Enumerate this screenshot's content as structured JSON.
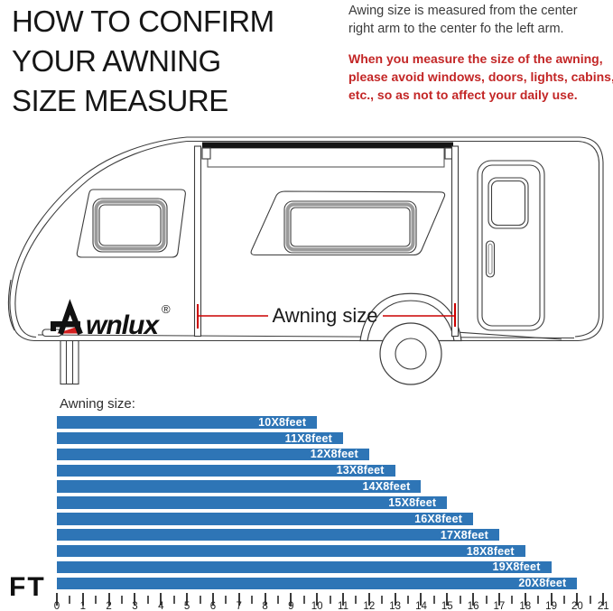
{
  "header": {
    "title_lines": [
      "HOW TO CONFIRM",
      "YOUR AWNING",
      "SIZE MEASURE"
    ],
    "note_black_lines": [
      "Awing size is measured from the center",
      "right arm to the center fo the left arm."
    ],
    "note_red_lines": [
      "When you measure the size of the awning,",
      "please avoid windows, doors, lights, cabins,",
      "etc., so as not to affect your daily use."
    ],
    "note_red_color": "#c32626"
  },
  "diagram": {
    "brand_full": "Awnlux",
    "brand_suffix": "wnlux",
    "registered_mark": "®",
    "measure_label": "Awning size",
    "measure_line_color": "#cc0000",
    "logo_red": "#d32020"
  },
  "chart_data": {
    "type": "bar",
    "orientation": "horizontal",
    "title": "Awning size:",
    "categories": [
      "10X8feet",
      "11X8feet",
      "12X8feet",
      "13X8feet",
      "14X8feet",
      "15X8feet",
      "16X8feet",
      "17X8feet",
      "18X8feet",
      "19X8feet",
      "20X8feet"
    ],
    "values": [
      10,
      11,
      12,
      13,
      14,
      15,
      16,
      17,
      18,
      19,
      20
    ],
    "unit": "feet",
    "xlabel": "FT",
    "xlim": [
      0,
      21
    ],
    "x_ticks": [
      0,
      1,
      2,
      3,
      4,
      5,
      6,
      7,
      8,
      9,
      10,
      11,
      12,
      13,
      14,
      15,
      16,
      17,
      18,
      19,
      20,
      21
    ],
    "minor_tick_step": 0.5,
    "grid": false,
    "legend": "none",
    "bar_color": "#2e75b6",
    "bar_label_color": "#ffffff"
  }
}
